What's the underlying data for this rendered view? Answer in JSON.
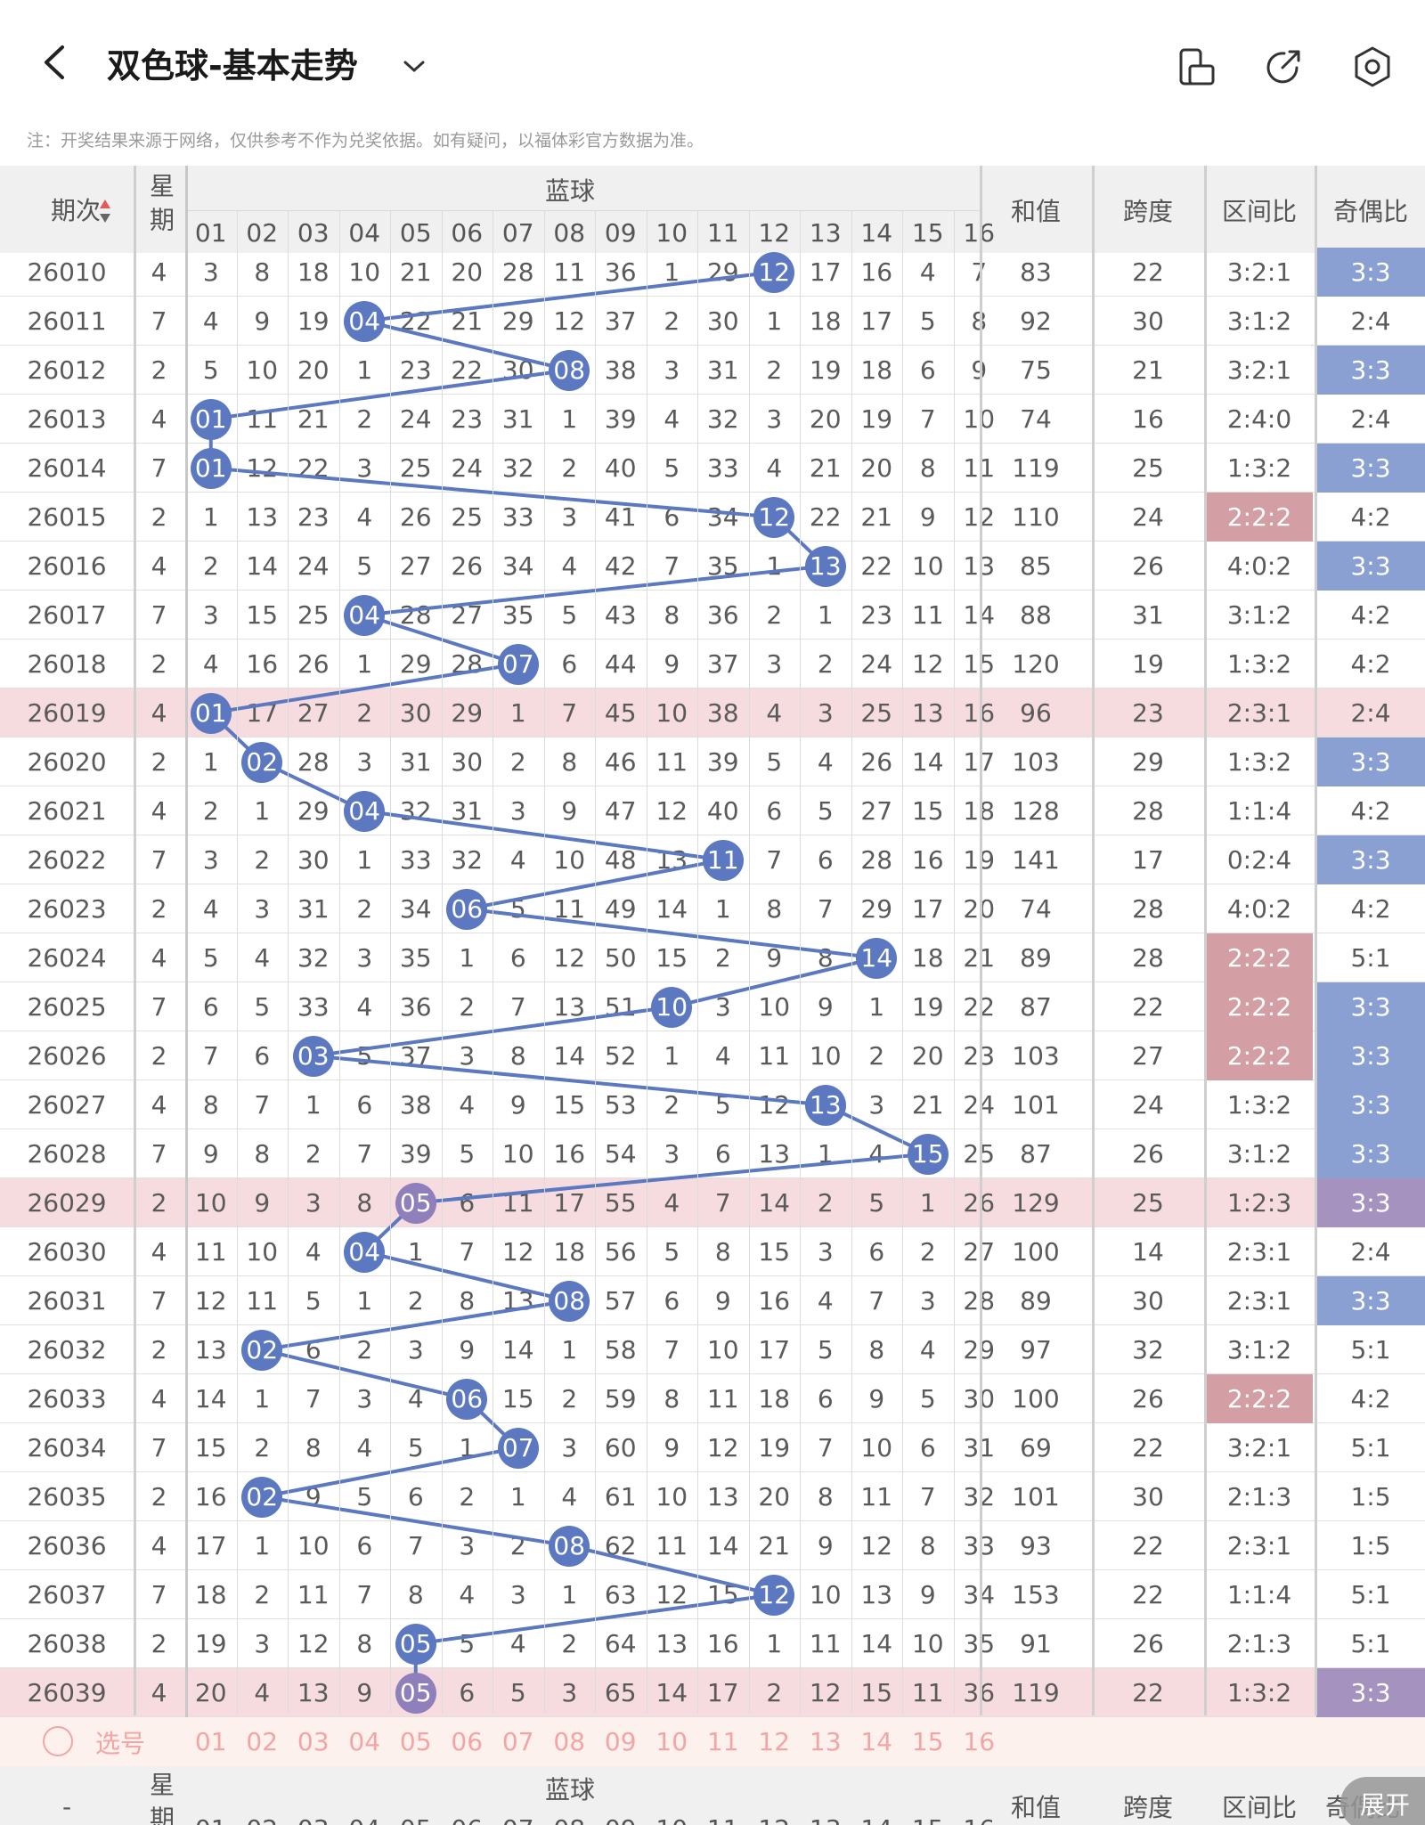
{
  "header": {
    "title": "双色球-基本走势",
    "icons": [
      "back-icon",
      "chevron-down-icon",
      "rotate-icon",
      "share-icon",
      "settings-icon"
    ]
  },
  "note": "注：开奖结果来源于网络，仅供参考不作为兑奖依据。如有疑问，以福体彩官方数据为准。",
  "columns": {
    "period": "期次",
    "weekday": "星期",
    "blue_group": "蓝球",
    "blue_numbers": [
      "01",
      "02",
      "03",
      "04",
      "05",
      "06",
      "07",
      "08",
      "09",
      "10",
      "11",
      "12",
      "13",
      "14",
      "15",
      "16"
    ],
    "sum": "和值",
    "span": "跨度",
    "zone_ratio": "区间比",
    "odd_even": "奇偶比"
  },
  "rows": [
    {
      "period": "26010",
      "weekday": "4",
      "omit": [
        "3",
        "8",
        "18",
        "10",
        "21",
        "20",
        "28",
        "11",
        "36",
        "1",
        "29",
        "",
        "17",
        "16",
        "4",
        "7"
      ],
      "hit": 12,
      "sum": "83",
      "span": "22",
      "zone": "3:2:1",
      "zone_hl": false,
      "oe": "3:3",
      "oe_hl": "blue",
      "row_hl": false
    },
    {
      "period": "26011",
      "weekday": "7",
      "omit": [
        "4",
        "9",
        "19",
        "",
        "22",
        "21",
        "29",
        "12",
        "37",
        "2",
        "30",
        "1",
        "18",
        "17",
        "5",
        "8"
      ],
      "hit": 4,
      "sum": "92",
      "span": "30",
      "zone": "3:1:2",
      "zone_hl": false,
      "oe": "2:4",
      "oe_hl": "",
      "row_hl": false
    },
    {
      "period": "26012",
      "weekday": "2",
      "omit": [
        "5",
        "10",
        "20",
        "1",
        "23",
        "22",
        "30",
        "",
        "38",
        "3",
        "31",
        "2",
        "19",
        "18",
        "6",
        "9"
      ],
      "hit": 8,
      "sum": "75",
      "span": "21",
      "zone": "3:2:1",
      "zone_hl": false,
      "oe": "3:3",
      "oe_hl": "blue",
      "row_hl": false
    },
    {
      "period": "26013",
      "weekday": "4",
      "omit": [
        "",
        "11",
        "21",
        "2",
        "24",
        "23",
        "31",
        "1",
        "39",
        "4",
        "32",
        "3",
        "20",
        "19",
        "7",
        "10"
      ],
      "hit": 1,
      "sum": "74",
      "span": "16",
      "zone": "2:4:0",
      "zone_hl": false,
      "oe": "2:4",
      "oe_hl": "",
      "row_hl": false
    },
    {
      "period": "26014",
      "weekday": "7",
      "omit": [
        "",
        "12",
        "22",
        "3",
        "25",
        "24",
        "32",
        "2",
        "40",
        "5",
        "33",
        "4",
        "21",
        "20",
        "8",
        "11"
      ],
      "hit": 1,
      "sum": "119",
      "span": "25",
      "zone": "1:3:2",
      "zone_hl": false,
      "oe": "3:3",
      "oe_hl": "blue",
      "row_hl": false
    },
    {
      "period": "26015",
      "weekday": "2",
      "omit": [
        "1",
        "13",
        "23",
        "4",
        "26",
        "25",
        "33",
        "3",
        "41",
        "6",
        "34",
        "",
        "22",
        "21",
        "9",
        "12"
      ],
      "hit": 12,
      "sum": "110",
      "span": "24",
      "zone": "2:2:2",
      "zone_hl": true,
      "oe": "4:2",
      "oe_hl": "",
      "row_hl": false
    },
    {
      "period": "26016",
      "weekday": "4",
      "omit": [
        "2",
        "14",
        "24",
        "5",
        "27",
        "26",
        "34",
        "4",
        "42",
        "7",
        "35",
        "1",
        "",
        "22",
        "10",
        "13"
      ],
      "hit": 13,
      "sum": "85",
      "span": "26",
      "zone": "4:0:2",
      "zone_hl": false,
      "oe": "3:3",
      "oe_hl": "blue",
      "row_hl": false
    },
    {
      "period": "26017",
      "weekday": "7",
      "omit": [
        "3",
        "15",
        "25",
        "",
        "28",
        "27",
        "35",
        "5",
        "43",
        "8",
        "36",
        "2",
        "1",
        "23",
        "11",
        "14"
      ],
      "hit": 4,
      "sum": "88",
      "span": "31",
      "zone": "3:1:2",
      "zone_hl": false,
      "oe": "4:2",
      "oe_hl": "",
      "row_hl": false
    },
    {
      "period": "26018",
      "weekday": "2",
      "omit": [
        "4",
        "16",
        "26",
        "1",
        "29",
        "28",
        "",
        "6",
        "44",
        "9",
        "37",
        "3",
        "2",
        "24",
        "12",
        "15"
      ],
      "hit": 7,
      "sum": "120",
      "span": "19",
      "zone": "1:3:2",
      "zone_hl": false,
      "oe": "4:2",
      "oe_hl": "",
      "row_hl": false
    },
    {
      "period": "26019",
      "weekday": "4",
      "omit": [
        "",
        "17",
        "27",
        "2",
        "30",
        "29",
        "1",
        "7",
        "45",
        "10",
        "38",
        "4",
        "3",
        "25",
        "13",
        "16"
      ],
      "hit": 1,
      "sum": "96",
      "span": "23",
      "zone": "2:3:1",
      "zone_hl": false,
      "oe": "2:4",
      "oe_hl": "",
      "row_hl": true
    },
    {
      "period": "26020",
      "weekday": "2",
      "omit": [
        "1",
        "",
        "28",
        "3",
        "31",
        "30",
        "2",
        "8",
        "46",
        "11",
        "39",
        "5",
        "4",
        "26",
        "14",
        "17"
      ],
      "hit": 2,
      "sum": "103",
      "span": "29",
      "zone": "1:3:2",
      "zone_hl": false,
      "oe": "3:3",
      "oe_hl": "blue",
      "row_hl": false
    },
    {
      "period": "26021",
      "weekday": "4",
      "omit": [
        "2",
        "1",
        "29",
        "",
        "32",
        "31",
        "3",
        "9",
        "47",
        "12",
        "40",
        "6",
        "5",
        "27",
        "15",
        "18"
      ],
      "hit": 4,
      "sum": "128",
      "span": "28",
      "zone": "1:1:4",
      "zone_hl": false,
      "oe": "4:2",
      "oe_hl": "",
      "row_hl": false
    },
    {
      "period": "26022",
      "weekday": "7",
      "omit": [
        "3",
        "2",
        "30",
        "1",
        "33",
        "32",
        "4",
        "10",
        "48",
        "13",
        "",
        "7",
        "6",
        "28",
        "16",
        "19"
      ],
      "hit": 11,
      "sum": "141",
      "span": "17",
      "zone": "0:2:4",
      "zone_hl": false,
      "oe": "3:3",
      "oe_hl": "blue",
      "row_hl": false
    },
    {
      "period": "26023",
      "weekday": "2",
      "omit": [
        "4",
        "3",
        "31",
        "2",
        "34",
        "",
        "5",
        "11",
        "49",
        "14",
        "1",
        "8",
        "7",
        "29",
        "17",
        "20"
      ],
      "hit": 6,
      "sum": "74",
      "span": "28",
      "zone": "4:0:2",
      "zone_hl": false,
      "oe": "4:2",
      "oe_hl": "",
      "row_hl": false
    },
    {
      "period": "26024",
      "weekday": "4",
      "omit": [
        "5",
        "4",
        "32",
        "3",
        "35",
        "1",
        "6",
        "12",
        "50",
        "15",
        "2",
        "9",
        "8",
        "",
        "18",
        "21"
      ],
      "hit": 14,
      "sum": "89",
      "span": "28",
      "zone": "2:2:2",
      "zone_hl": true,
      "oe": "5:1",
      "oe_hl": "",
      "row_hl": false
    },
    {
      "period": "26025",
      "weekday": "7",
      "omit": [
        "6",
        "5",
        "33",
        "4",
        "36",
        "2",
        "7",
        "13",
        "51",
        "",
        "3",
        "10",
        "9",
        "1",
        "19",
        "22"
      ],
      "hit": 10,
      "sum": "87",
      "span": "22",
      "zone": "2:2:2",
      "zone_hl": true,
      "oe": "3:3",
      "oe_hl": "blue",
      "row_hl": false
    },
    {
      "period": "26026",
      "weekday": "2",
      "omit": [
        "7",
        "6",
        "",
        "5",
        "37",
        "3",
        "8",
        "14",
        "52",
        "1",
        "4",
        "11",
        "10",
        "2",
        "20",
        "23"
      ],
      "hit": 3,
      "sum": "103",
      "span": "27",
      "zone": "2:2:2",
      "zone_hl": true,
      "oe": "3:3",
      "oe_hl": "blue",
      "row_hl": false
    },
    {
      "period": "26027",
      "weekday": "4",
      "omit": [
        "8",
        "7",
        "1",
        "6",
        "38",
        "4",
        "9",
        "15",
        "53",
        "2",
        "5",
        "12",
        "",
        "3",
        "21",
        "24"
      ],
      "hit": 13,
      "sum": "101",
      "span": "24",
      "zone": "1:3:2",
      "zone_hl": false,
      "oe": "3:3",
      "oe_hl": "blue",
      "row_hl": false
    },
    {
      "period": "26028",
      "weekday": "7",
      "omit": [
        "9",
        "8",
        "2",
        "7",
        "39",
        "5",
        "10",
        "16",
        "54",
        "3",
        "6",
        "13",
        "1",
        "4",
        "",
        "25"
      ],
      "hit": 15,
      "sum": "87",
      "span": "26",
      "zone": "3:1:2",
      "zone_hl": false,
      "oe": "3:3",
      "oe_hl": "blue",
      "row_hl": false
    },
    {
      "period": "26029",
      "weekday": "2",
      "omit": [
        "10",
        "9",
        "3",
        "8",
        "",
        "6",
        "11",
        "17",
        "55",
        "4",
        "7",
        "14",
        "2",
        "5",
        "1",
        "26"
      ],
      "hit": 5,
      "sum": "129",
      "span": "25",
      "zone": "1:2:3",
      "zone_hl": false,
      "oe": "3:3",
      "oe_hl": "purple",
      "row_hl": true
    },
    {
      "period": "26030",
      "weekday": "4",
      "omit": [
        "11",
        "10",
        "4",
        "",
        "1",
        "7",
        "12",
        "18",
        "56",
        "5",
        "8",
        "15",
        "3",
        "6",
        "2",
        "27"
      ],
      "hit": 4,
      "sum": "100",
      "span": "14",
      "zone": "2:3:1",
      "zone_hl": false,
      "oe": "2:4",
      "oe_hl": "",
      "row_hl": false
    },
    {
      "period": "26031",
      "weekday": "7",
      "omit": [
        "12",
        "11",
        "5",
        "1",
        "2",
        "8",
        "13",
        "",
        "57",
        "6",
        "9",
        "16",
        "4",
        "7",
        "3",
        "28"
      ],
      "hit": 8,
      "sum": "89",
      "span": "30",
      "zone": "2:3:1",
      "zone_hl": false,
      "oe": "3:3",
      "oe_hl": "blue",
      "row_hl": false
    },
    {
      "period": "26032",
      "weekday": "2",
      "omit": [
        "13",
        "",
        "6",
        "2",
        "3",
        "9",
        "14",
        "1",
        "58",
        "7",
        "10",
        "17",
        "5",
        "8",
        "4",
        "29"
      ],
      "hit": 2,
      "sum": "97",
      "span": "32",
      "zone": "3:1:2",
      "zone_hl": false,
      "oe": "5:1",
      "oe_hl": "",
      "row_hl": false
    },
    {
      "period": "26033",
      "weekday": "4",
      "omit": [
        "14",
        "1",
        "7",
        "3",
        "4",
        "",
        "15",
        "2",
        "59",
        "8",
        "11",
        "18",
        "6",
        "9",
        "5",
        "30"
      ],
      "hit": 6,
      "sum": "100",
      "span": "26",
      "zone": "2:2:2",
      "zone_hl": true,
      "oe": "4:2",
      "oe_hl": "",
      "row_hl": false
    },
    {
      "period": "26034",
      "weekday": "7",
      "omit": [
        "15",
        "2",
        "8",
        "4",
        "5",
        "1",
        "",
        "3",
        "60",
        "9",
        "12",
        "19",
        "7",
        "10",
        "6",
        "31"
      ],
      "hit": 7,
      "sum": "69",
      "span": "22",
      "zone": "3:2:1",
      "zone_hl": false,
      "oe": "5:1",
      "oe_hl": "",
      "row_hl": false
    },
    {
      "period": "26035",
      "weekday": "2",
      "omit": [
        "16",
        "",
        "9",
        "5",
        "6",
        "2",
        "1",
        "4",
        "61",
        "10",
        "13",
        "20",
        "8",
        "11",
        "7",
        "32"
      ],
      "hit": 2,
      "sum": "101",
      "span": "30",
      "zone": "2:1:3",
      "zone_hl": false,
      "oe": "1:5",
      "oe_hl": "",
      "row_hl": false
    },
    {
      "period": "26036",
      "weekday": "4",
      "omit": [
        "17",
        "1",
        "10",
        "6",
        "7",
        "3",
        "2",
        "",
        "62",
        "11",
        "14",
        "21",
        "9",
        "12",
        "8",
        "33"
      ],
      "hit": 8,
      "sum": "93",
      "span": "22",
      "zone": "2:3:1",
      "zone_hl": false,
      "oe": "1:5",
      "oe_hl": "",
      "row_hl": false
    },
    {
      "period": "26037",
      "weekday": "7",
      "omit": [
        "18",
        "2",
        "11",
        "7",
        "8",
        "4",
        "3",
        "1",
        "63",
        "12",
        "15",
        "",
        "10",
        "13",
        "9",
        "34"
      ],
      "hit": 12,
      "sum": "153",
      "span": "22",
      "zone": "1:1:4",
      "zone_hl": false,
      "oe": "5:1",
      "oe_hl": "",
      "row_hl": false
    },
    {
      "period": "26038",
      "weekday": "2",
      "omit": [
        "19",
        "3",
        "12",
        "8",
        "",
        "5",
        "4",
        "2",
        "64",
        "13",
        "16",
        "1",
        "11",
        "14",
        "10",
        "35"
      ],
      "hit": 5,
      "sum": "91",
      "span": "26",
      "zone": "2:1:3",
      "zone_hl": false,
      "oe": "5:1",
      "oe_hl": "",
      "row_hl": false
    },
    {
      "period": "26039",
      "weekday": "4",
      "omit": [
        "20",
        "4",
        "13",
        "9",
        "",
        "6",
        "5",
        "3",
        "65",
        "14",
        "17",
        "2",
        "12",
        "15",
        "11",
        "36"
      ],
      "hit": 5,
      "sum": "119",
      "span": "22",
      "zone": "1:3:2",
      "zone_hl": false,
      "oe": "3:3",
      "oe_hl": "purple",
      "row_hl": true
    }
  ],
  "select_row": {
    "label": "选号"
  },
  "footer": {
    "dash": "-",
    "expand": "展开"
  },
  "colors": {
    "blue_ball": "#5b78c0",
    "hl_row": "#f6dcdf",
    "zone_hl": "#d49fa4",
    "oe_blue": "#8aa0d2",
    "oe_purple": "#a592bf",
    "select_bg": "#fdf1ee",
    "select_text": "#f2a5a5"
  }
}
